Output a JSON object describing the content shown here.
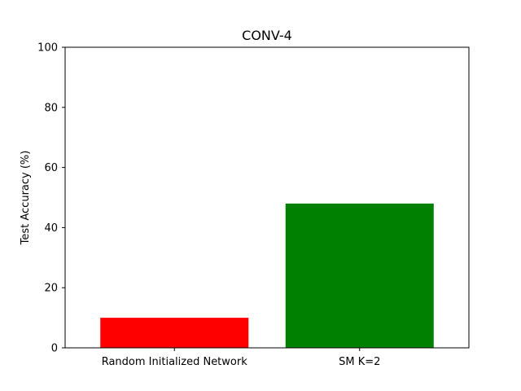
{
  "chart_data": {
    "type": "bar",
    "title": "CONV-4",
    "xlabel": "",
    "ylabel": "Test Accuracy (%)",
    "categories": [
      "Random Initialized Network",
      "SM K=2"
    ],
    "values": [
      10,
      48
    ],
    "colors": [
      "#ff0000",
      "#008000"
    ],
    "ylim": [
      0,
      100
    ],
    "yticks": [
      0,
      20,
      40,
      60,
      80,
      100
    ],
    "grid": false,
    "legend": "none"
  }
}
